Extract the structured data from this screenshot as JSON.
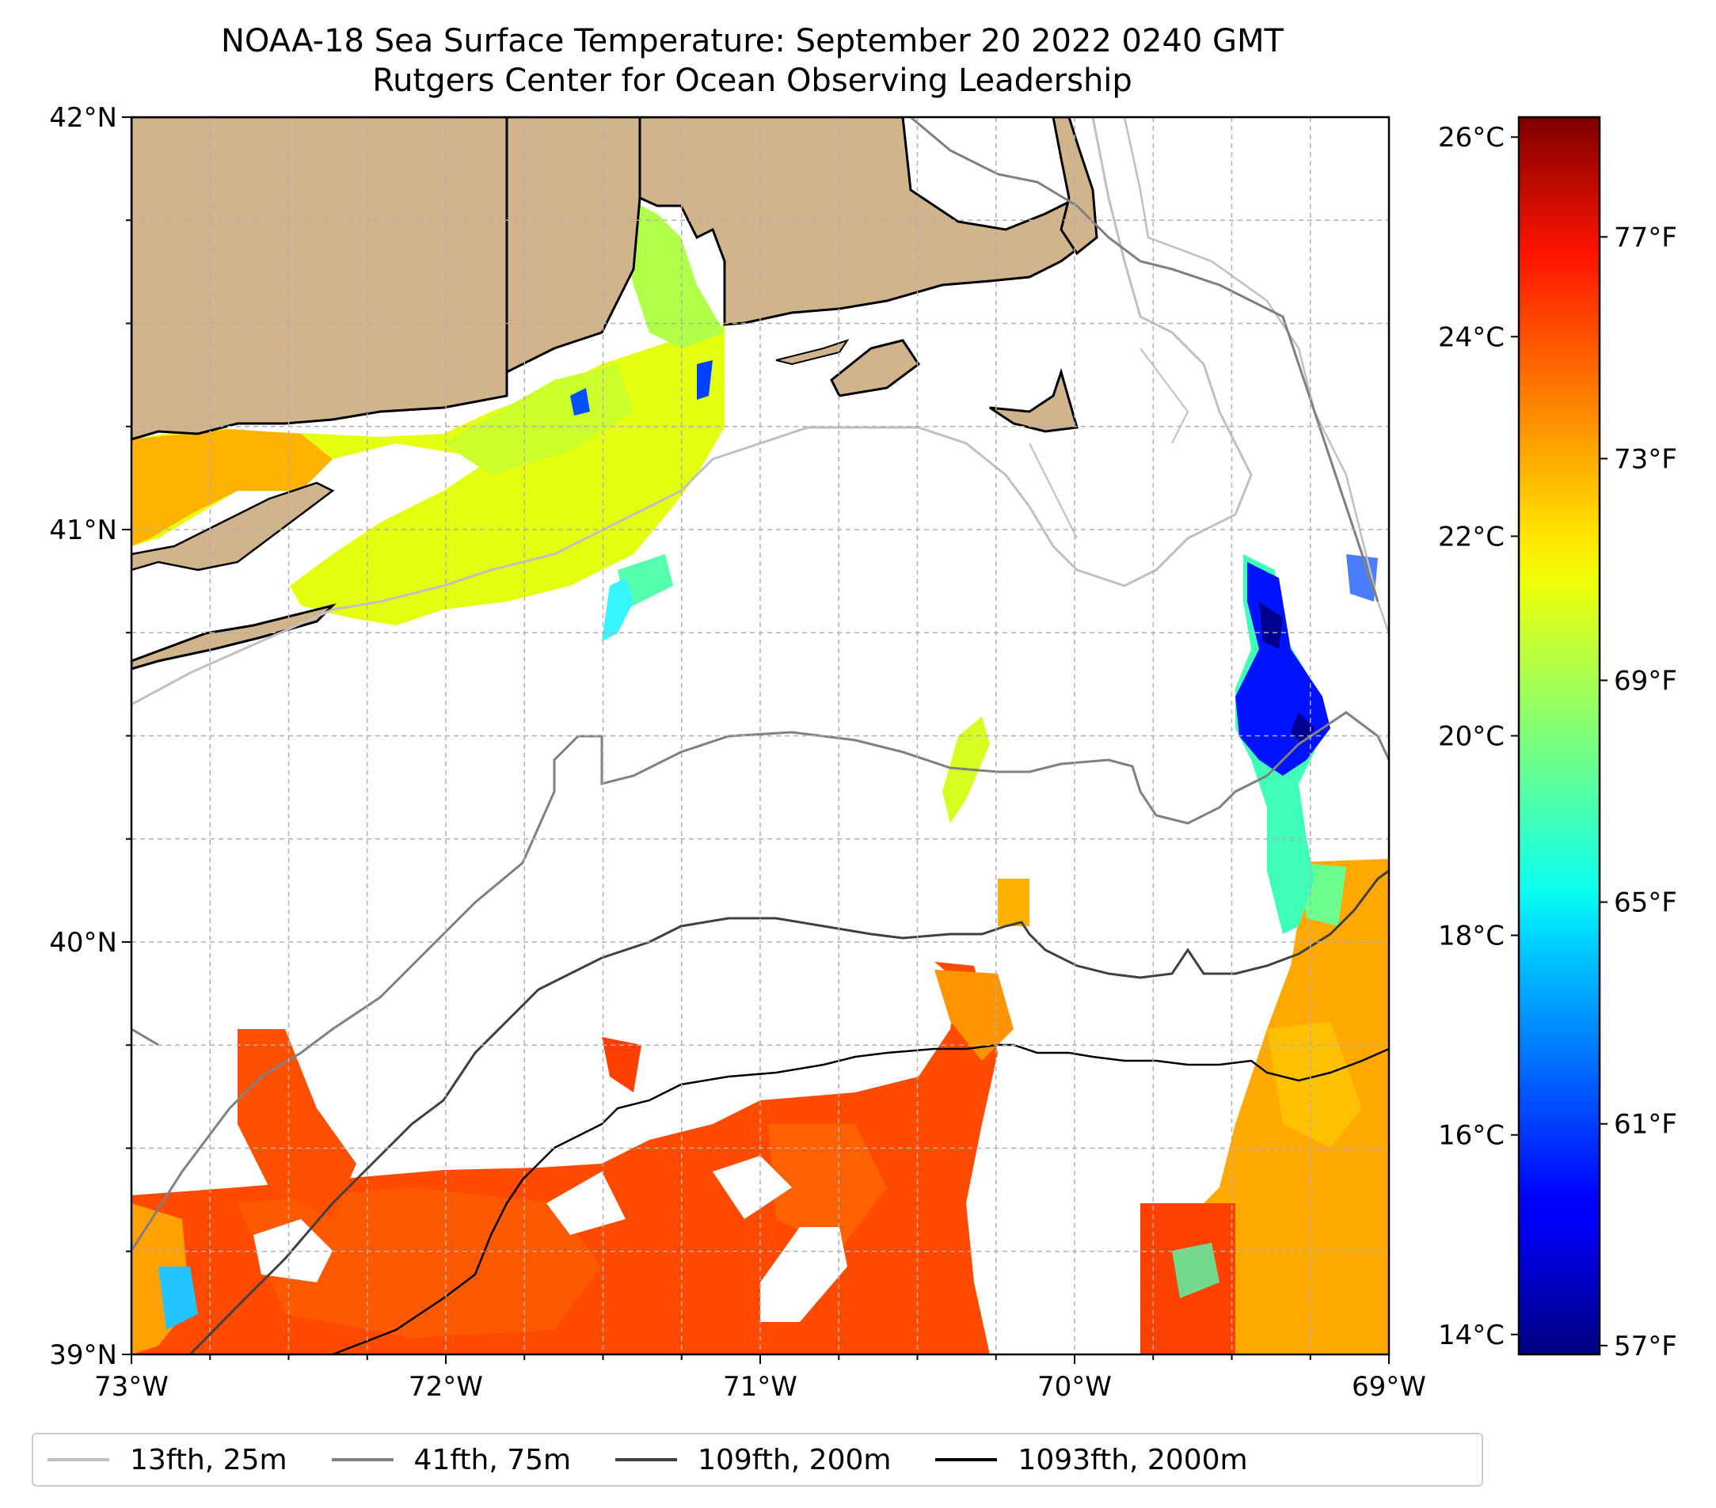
{
  "title": {
    "line1": "NOAA-18 Sea Surface Temperature: September 20 2022 0240 GMT",
    "line2": "Rutgers Center for Ocean Observing Leadership"
  },
  "map": {
    "lat_range": [
      39,
      42
    ],
    "lon_range": [
      -73,
      -69
    ],
    "lat_ticks": [
      {
        "value": 42,
        "label": "42°N"
      },
      {
        "value": 41,
        "label": "41°N"
      },
      {
        "value": 40,
        "label": "40°N"
      },
      {
        "value": 39,
        "label": "39°N"
      }
    ],
    "lon_ticks": [
      {
        "value": -73,
        "label": "73°W"
      },
      {
        "value": -72,
        "label": "72°W"
      },
      {
        "value": -71,
        "label": "71°W"
      },
      {
        "value": -70,
        "label": "70°W"
      },
      {
        "value": -69,
        "label": "69°W"
      }
    ],
    "land_color": "#d2b48c",
    "grid": "dashed"
  },
  "colorbar": {
    "colormap": "jet",
    "celsius_ticks": [
      {
        "value": 26,
        "label": "26°C"
      },
      {
        "value": 24,
        "label": "24°C"
      },
      {
        "value": 22,
        "label": "22°C"
      },
      {
        "value": 20,
        "label": "20°C"
      },
      {
        "value": 18,
        "label": "18°C"
      },
      {
        "value": 16,
        "label": "16°C"
      },
      {
        "value": 14,
        "label": "14°C"
      }
    ],
    "fahrenheit_ticks": [
      {
        "value": 77,
        "label": "77°F"
      },
      {
        "value": 73,
        "label": "73°F"
      },
      {
        "value": 69,
        "label": "69°F"
      },
      {
        "value": 65,
        "label": "65°F"
      },
      {
        "value": 61,
        "label": "61°F"
      },
      {
        "value": 57,
        "label": "57°F"
      }
    ],
    "range_c": [
      13.8,
      26.2
    ]
  },
  "legend": {
    "items": [
      {
        "label": "13fth, 25m",
        "color": "#c0c0c0"
      },
      {
        "label": "41fth, 75m",
        "color": "#808080"
      },
      {
        "label": "109fth, 200m",
        "color": "#404040"
      },
      {
        "label": "1093fth, 2000m",
        "color": "#000000"
      }
    ]
  }
}
